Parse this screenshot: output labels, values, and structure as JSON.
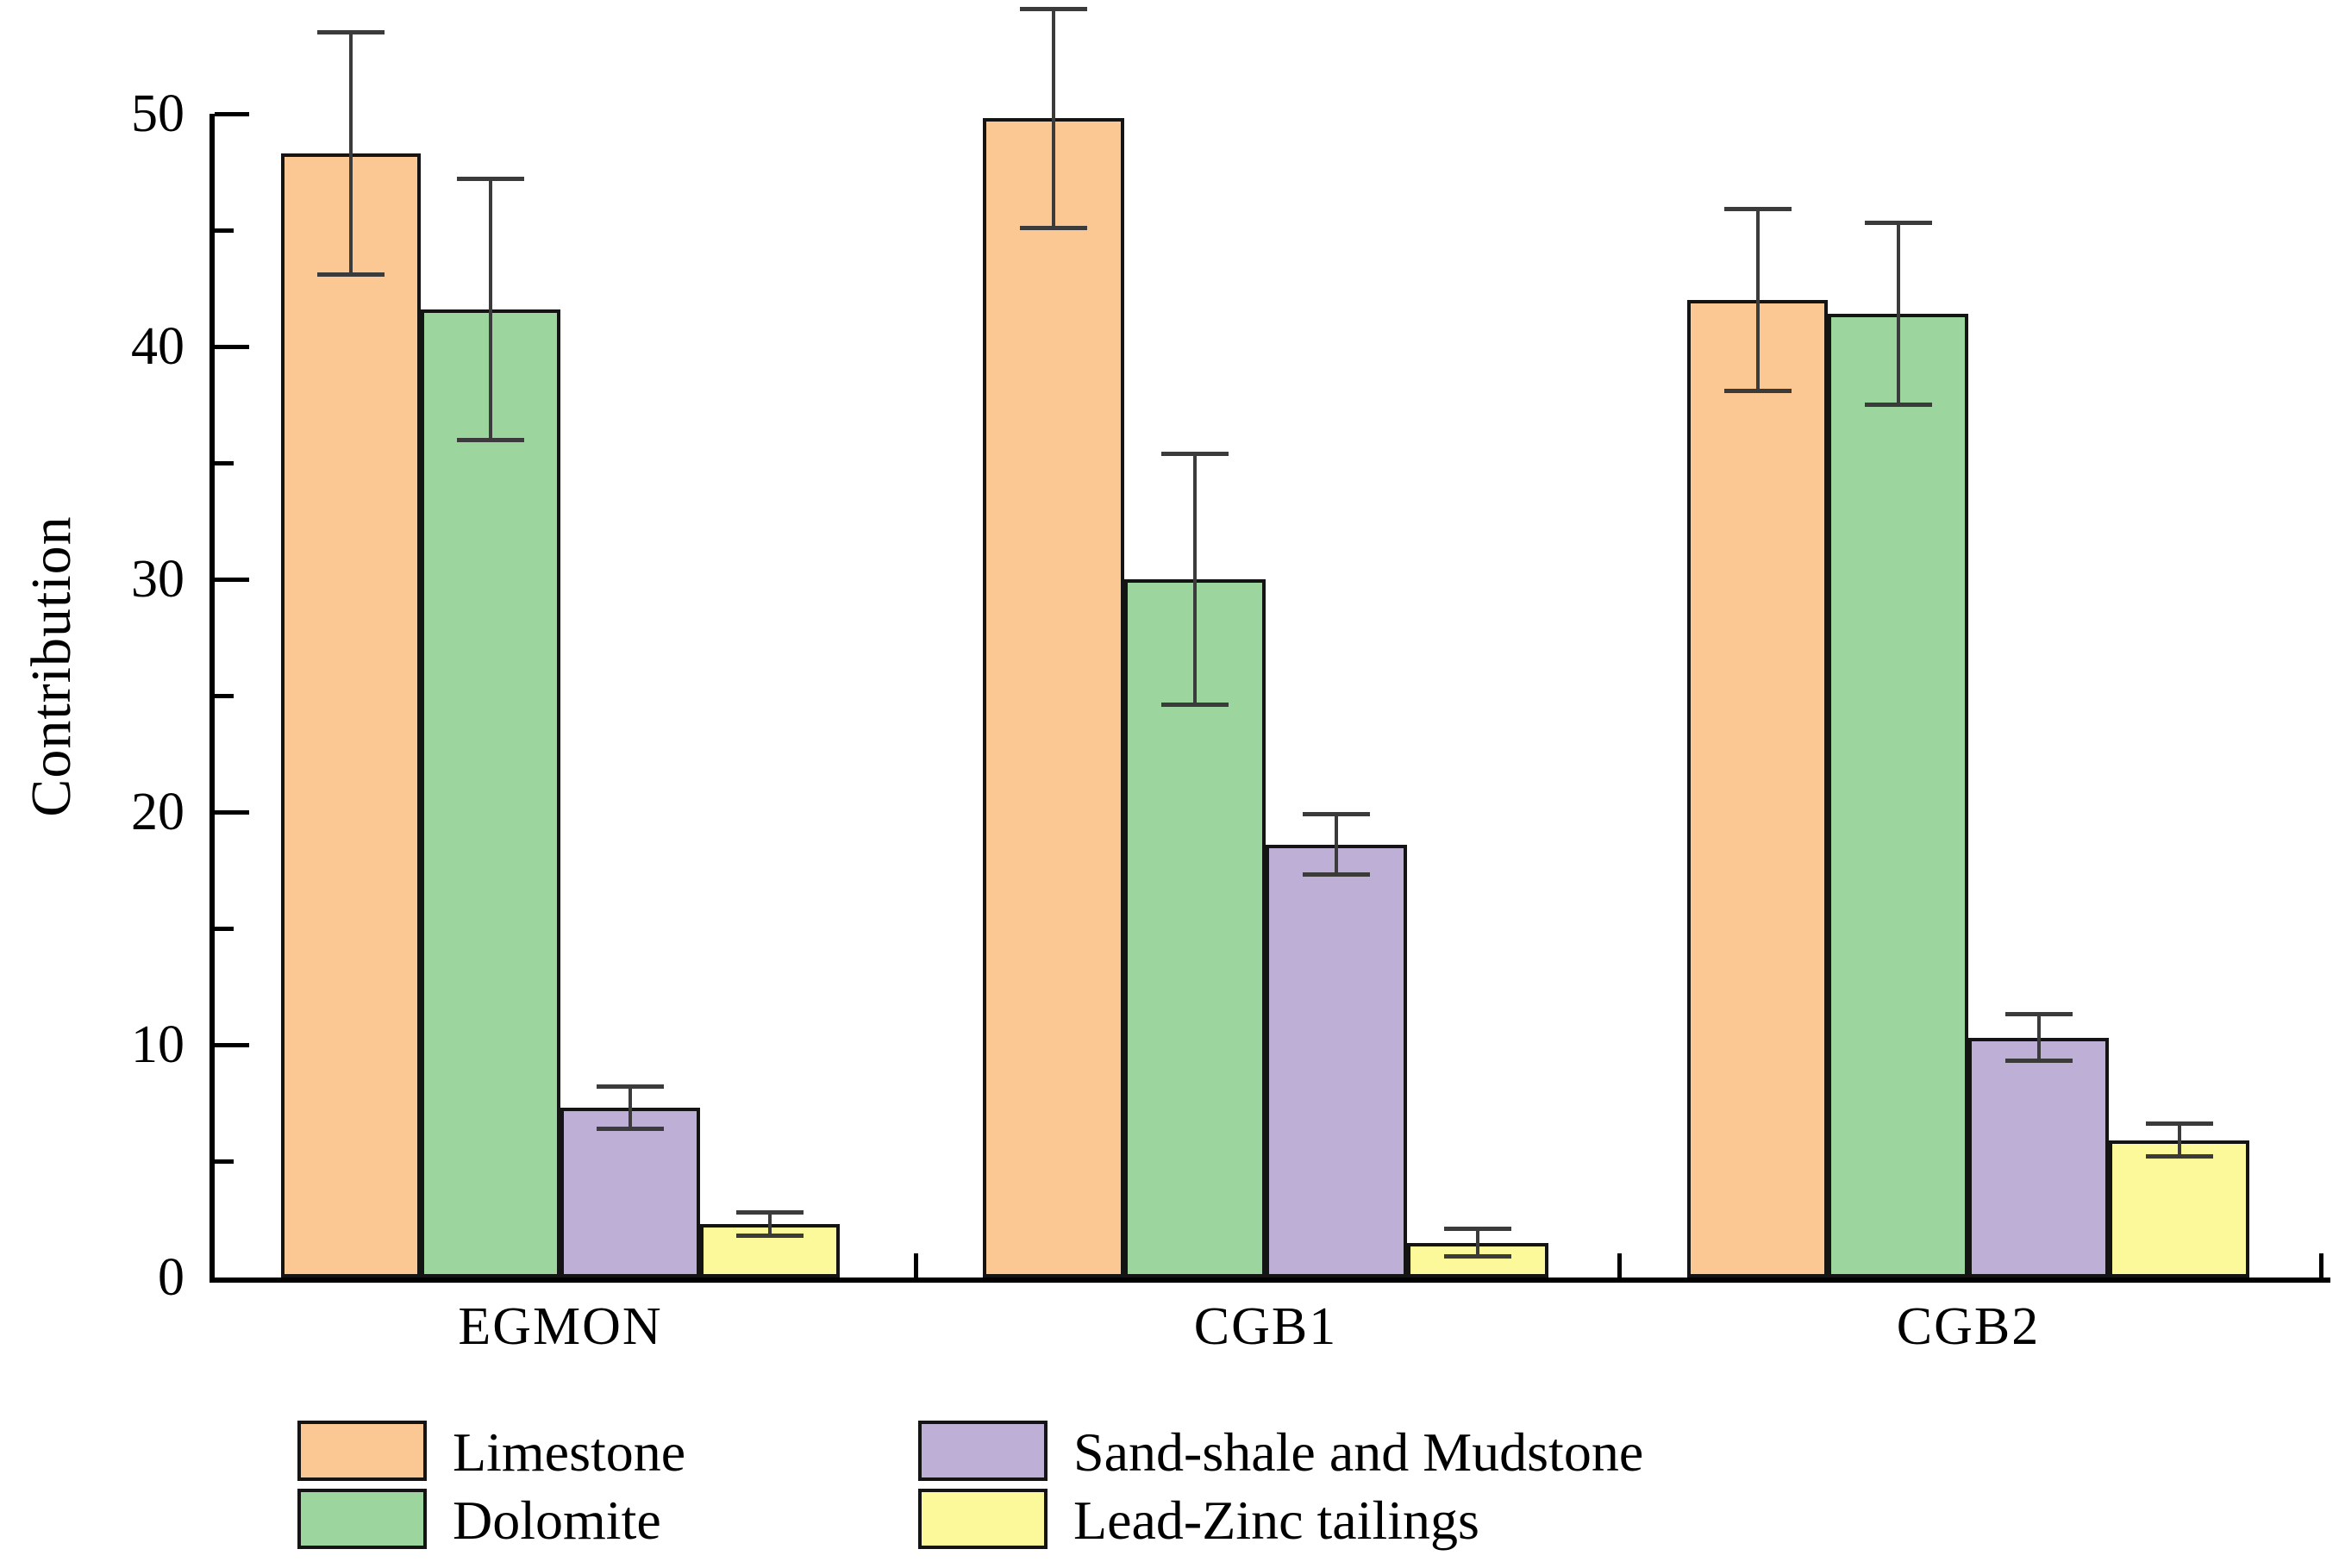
{
  "chart_data": {
    "type": "bar",
    "title": "",
    "xlabel": "",
    "ylabel": "Contribution",
    "ylim": [
      0,
      50
    ],
    "yticks_major": [
      0,
      10,
      20,
      30,
      40,
      50
    ],
    "yticks_minor": [
      5,
      15,
      25,
      35,
      45
    ],
    "grid": false,
    "legend_position": "bottom",
    "categories": [
      "EGMON",
      "CGB1",
      "CGB2"
    ],
    "series": [
      {
        "name": "Limestone",
        "color": "#FBC893",
        "values": [
          48.3,
          49.8,
          42.0
        ],
        "errors": [
          5.2,
          4.7,
          3.9
        ]
      },
      {
        "name": "Dolomite",
        "color": "#9DD59E",
        "values": [
          41.6,
          30.0,
          41.4
        ],
        "errors": [
          5.6,
          5.4,
          3.9
        ]
      },
      {
        "name": "Sand-shale and Mudstone",
        "color": "#BDAFD5",
        "values": [
          7.3,
          18.6,
          10.3
        ],
        "errors": [
          0.9,
          1.3,
          1.0
        ]
      },
      {
        "name": "Lead-Zinc tailings",
        "color": "#FBF99A",
        "values": [
          2.3,
          1.5,
          5.9
        ],
        "errors": [
          0.5,
          0.6,
          0.7
        ]
      }
    ],
    "error_bar_color": "#3B3B3B",
    "bar_border_color": "#141414",
    "axis_color": "#000000"
  }
}
